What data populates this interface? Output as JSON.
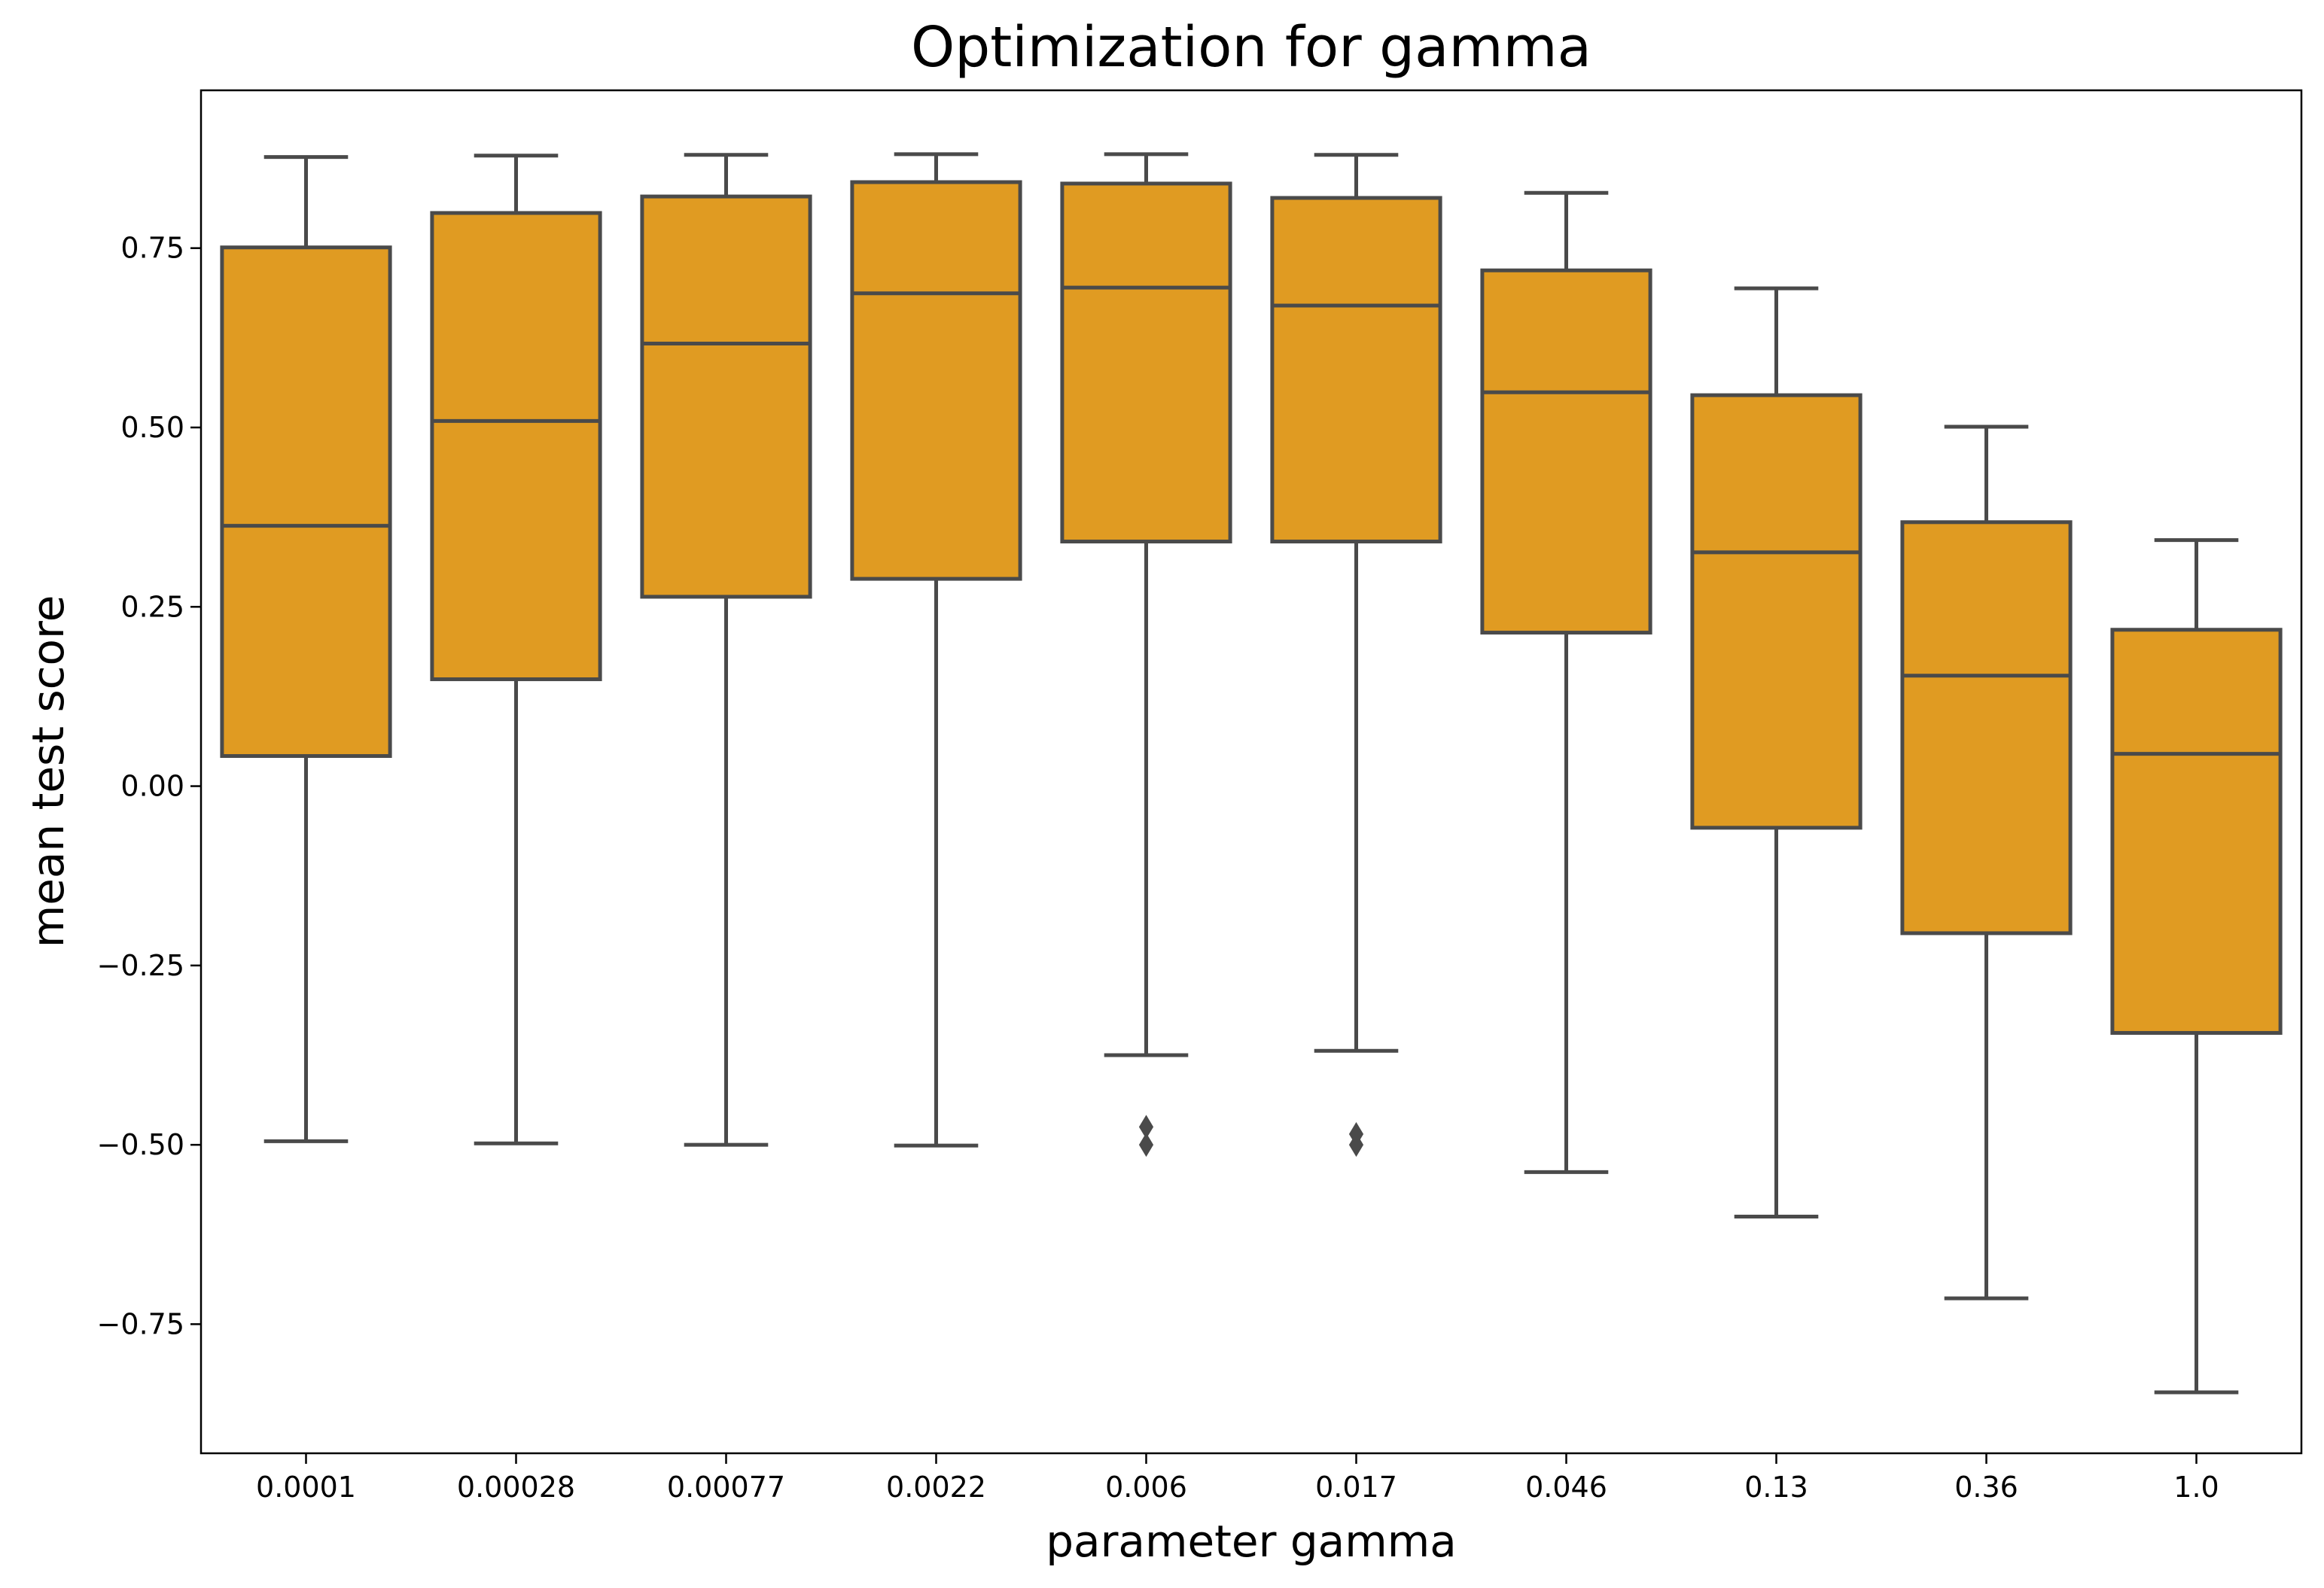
{
  "chart_data": {
    "type": "box",
    "title": "Optimization for gamma",
    "xlabel": "parameter gamma",
    "ylabel": "mean test score",
    "categories": [
      "0.0001",
      "0.00028",
      "0.00077",
      "0.0022",
      "0.006",
      "0.017",
      "0.046",
      "0.13",
      "0.36",
      "1.0"
    ],
    "yticks": [
      -0.75,
      -0.5,
      -0.25,
      0.0,
      0.25,
      0.5,
      0.75
    ],
    "ytick_labels": [
      "−0.75",
      "−0.50",
      "−0.25",
      "0.00",
      "0.25",
      "0.50",
      "0.75"
    ],
    "ylim": [
      -0.93,
      0.97
    ],
    "grid": false,
    "box_color": "#E09B22",
    "line_color": "#4A4A4A",
    "series": [
      {
        "category": "0.0001",
        "whisker_low": -0.495,
        "q1": 0.042,
        "median": 0.363,
        "q3": 0.751,
        "whisker_high": 0.877,
        "outliers": []
      },
      {
        "category": "0.00028",
        "whisker_low": -0.498,
        "q1": 0.149,
        "median": 0.509,
        "q3": 0.799,
        "whisker_high": 0.879,
        "outliers": []
      },
      {
        "category": "0.00077",
        "whisker_low": -0.5,
        "q1": 0.264,
        "median": 0.617,
        "q3": 0.822,
        "whisker_high": 0.88,
        "outliers": []
      },
      {
        "category": "0.0022",
        "whisker_low": -0.501,
        "q1": 0.289,
        "median": 0.687,
        "q3": 0.842,
        "whisker_high": 0.881,
        "outliers": []
      },
      {
        "category": "0.006",
        "whisker_low": -0.375,
        "q1": 0.341,
        "median": 0.695,
        "q3": 0.84,
        "whisker_high": 0.881,
        "outliers": [
          -0.475,
          -0.5
        ]
      },
      {
        "category": "0.017",
        "whisker_low": -0.369,
        "q1": 0.341,
        "median": 0.67,
        "q3": 0.82,
        "whisker_high": 0.88,
        "outliers": [
          -0.485,
          -0.5
        ]
      },
      {
        "category": "0.046",
        "whisker_low": -0.538,
        "q1": 0.214,
        "median": 0.549,
        "q3": 0.719,
        "whisker_high": 0.827,
        "outliers": []
      },
      {
        "category": "0.13",
        "whisker_low": -0.6,
        "q1": -0.058,
        "median": 0.326,
        "q3": 0.545,
        "whisker_high": 0.694,
        "outliers": []
      },
      {
        "category": "0.36",
        "whisker_low": -0.714,
        "q1": -0.205,
        "median": 0.154,
        "q3": 0.368,
        "whisker_high": 0.501,
        "outliers": []
      },
      {
        "category": "1.0",
        "whisker_low": -0.845,
        "q1": -0.344,
        "median": 0.045,
        "q3": 0.218,
        "whisker_high": 0.343,
        "outliers": []
      }
    ]
  }
}
